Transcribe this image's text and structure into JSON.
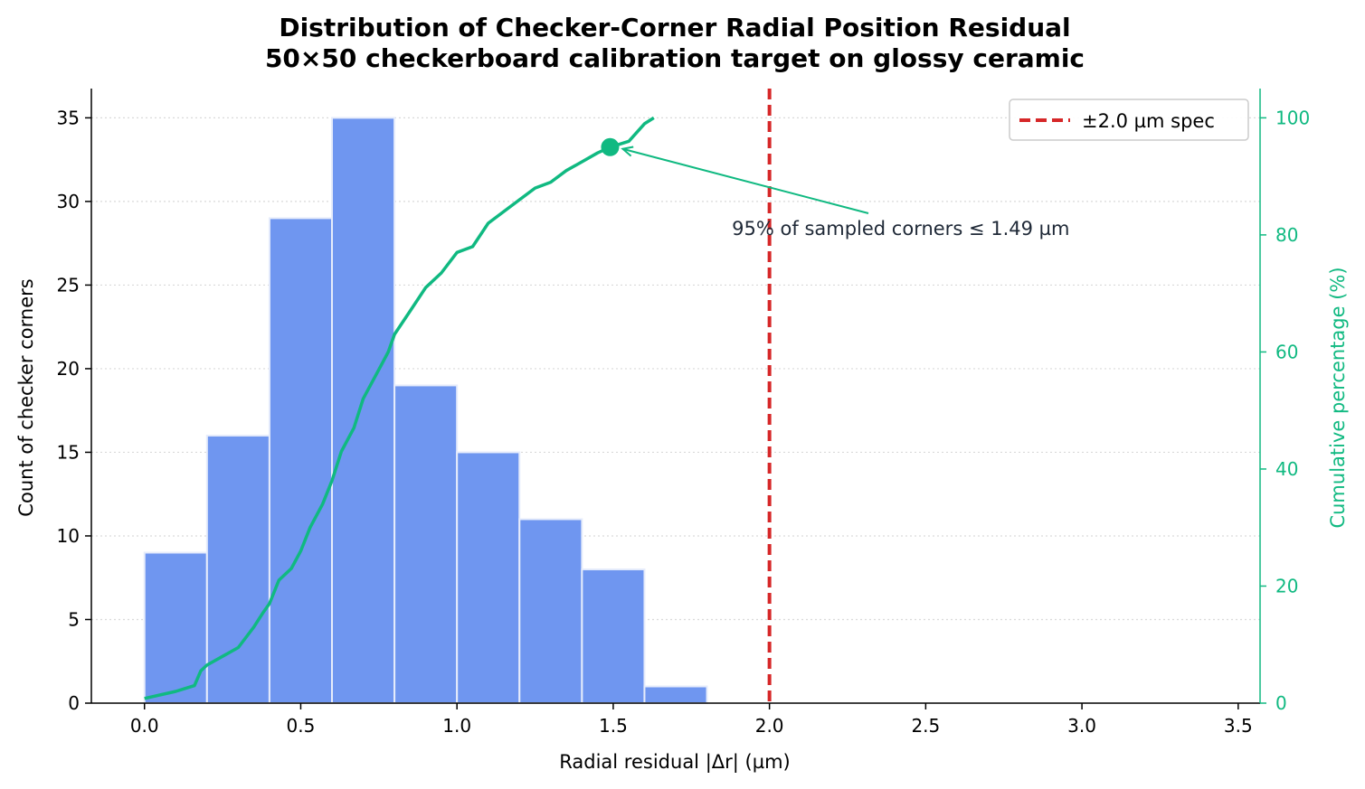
{
  "chart_data": {
    "type": "bar",
    "title": "Distribution of Checker-Corner Radial Position Residual",
    "subtitle": "50×50 checkerboard calibration target on glossy ceramic",
    "xlabel": "Radial residual |Δr| (µm)",
    "ylabel": "Count of checker corners",
    "y2label": "Cumulative percentage (%)",
    "xlim": [
      -0.17,
      3.57
    ],
    "ylim": [
      0,
      36.75
    ],
    "y2lim": [
      0,
      105
    ],
    "xticks": [
      "0.0",
      "0.5",
      "1.0",
      "1.5",
      "2.0",
      "2.5",
      "3.0",
      "3.5"
    ],
    "yticks": [
      "0",
      "5",
      "10",
      "15",
      "20",
      "25",
      "30",
      "35"
    ],
    "y2ticks": [
      "0",
      "20",
      "40",
      "60",
      "80",
      "100"
    ],
    "grid": "horizontal dotted",
    "bins": [
      {
        "start": 0.0,
        "end": 0.2,
        "count": 9
      },
      {
        "start": 0.2,
        "end": 0.4,
        "count": 16
      },
      {
        "start": 0.4,
        "end": 0.6,
        "count": 29
      },
      {
        "start": 0.6,
        "end": 0.8,
        "count": 35
      },
      {
        "start": 0.8,
        "end": 1.0,
        "count": 19
      },
      {
        "start": 1.0,
        "end": 1.2,
        "count": 15
      },
      {
        "start": 1.2,
        "end": 1.4,
        "count": 11
      },
      {
        "start": 1.4,
        "end": 1.6,
        "count": 8
      },
      {
        "start": 1.6,
        "end": 1.8,
        "count": 1
      }
    ],
    "cumulative": {
      "x": [
        0.0,
        0.1,
        0.16,
        0.18,
        0.2,
        0.25,
        0.3,
        0.35,
        0.38,
        0.4,
        0.43,
        0.47,
        0.5,
        0.53,
        0.57,
        0.6,
        0.63,
        0.67,
        0.7,
        0.73,
        0.76,
        0.78,
        0.8,
        0.85,
        0.9,
        0.95,
        1.0,
        1.05,
        1.1,
        1.15,
        1.2,
        1.25,
        1.3,
        1.35,
        1.4,
        1.45,
        1.49,
        1.55,
        1.6,
        1.63
      ],
      "y": [
        0.8,
        2.0,
        3.0,
        5.5,
        6.5,
        8.0,
        9.5,
        13.0,
        15.5,
        17.0,
        21.0,
        23.0,
        26.0,
        30.0,
        34.0,
        38.0,
        43.0,
        47.0,
        52.0,
        55.0,
        58.0,
        60.0,
        63.0,
        67.0,
        71.0,
        73.5,
        77.0,
        78.0,
        82.0,
        84.0,
        86.0,
        88.0,
        89.0,
        91.0,
        92.5,
        94.0,
        95.0,
        96.0,
        99.0,
        100.0
      ]
    },
    "marker": {
      "x": 1.49,
      "y": 95
    },
    "annotation": {
      "text": "95% of sampled corners ≤ 1.49 µm",
      "x": 1.88,
      "y": 80
    },
    "spec_line": {
      "x": 2.0,
      "label": "±2.0 µm spec",
      "color": "#d62728"
    },
    "legend": "top-right",
    "colors": {
      "bars": "#6f96f0",
      "bar_edge": "#e6ecfb",
      "cumulative": "#10b981",
      "spec": "#d62728"
    }
  }
}
